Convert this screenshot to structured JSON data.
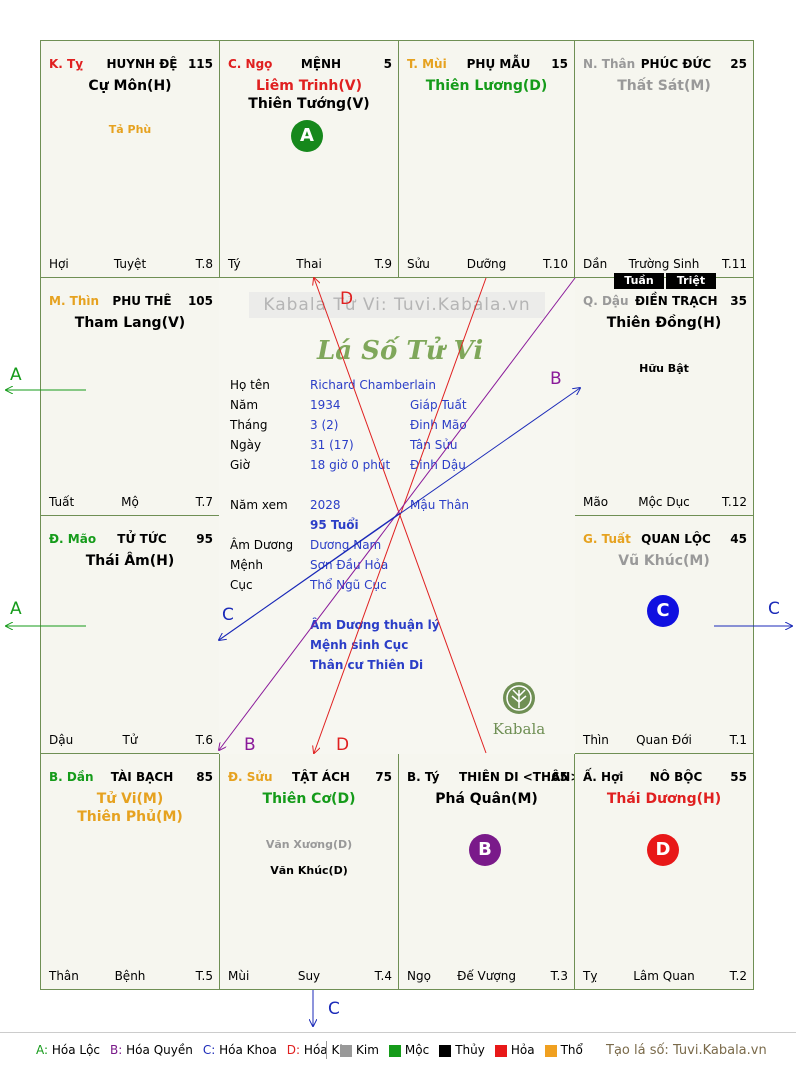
{
  "cells": [
    {
      "id": "ty",
      "branch": "K. Tỵ",
      "branch_color": "#e02020",
      "palace": "HUYNH ĐỆ",
      "num": "115",
      "stars": [
        {
          "text": "Cự Môn(H)",
          "color": "#000000"
        }
      ],
      "minor": [
        {
          "text": "Tả Phù",
          "color": "#e6a220"
        }
      ],
      "foot_l": "Hợi",
      "foot_c": "Tuyệt",
      "foot_r": "T.8"
    },
    {
      "id": "ngo",
      "branch": "C. Ngọ",
      "branch_color": "#e02020",
      "palace": "MỆNH",
      "num": "5",
      "stars": [
        {
          "text": "Liêm Trinh(V)",
          "color": "#e02020"
        },
        {
          "text": "Thiên Tướng(V)",
          "color": "#000000"
        }
      ],
      "minor": [],
      "foot_l": "Tý",
      "foot_c": "Thai",
      "foot_r": "T.9"
    },
    {
      "id": "mui",
      "branch": "T. Mùi",
      "branch_color": "#e6a220",
      "palace": "PHỤ MẪU",
      "num": "15",
      "stars": [
        {
          "text": "Thiên Lương(D)",
          "color": "#159b1a"
        }
      ],
      "minor": [],
      "foot_l": "Sửu",
      "foot_c": "Dưỡng",
      "foot_r": "T.10"
    },
    {
      "id": "than",
      "branch": "N. Thân",
      "branch_color": "#999999",
      "palace": "PHÚC ĐỨC",
      "num": "25",
      "stars": [
        {
          "text": "Thất Sát(M)",
          "color": "#999999"
        }
      ],
      "minor": [],
      "foot_l": "Dần",
      "foot_c": "Trường Sinh",
      "foot_r": "T.11"
    },
    {
      "id": "thin",
      "branch": "M. Thìn",
      "branch_color": "#e6a220",
      "palace": "PHU THÊ",
      "num": "105",
      "stars": [
        {
          "text": "Tham Lang(V)",
          "color": "#000000"
        }
      ],
      "minor": [],
      "foot_l": "Tuất",
      "foot_c": "Mộ",
      "foot_r": "T.7"
    },
    {
      "id": "dau",
      "branch": "Q. Dậu",
      "branch_color": "#999999",
      "palace": "ĐIỀN TRẠCH",
      "num": "35",
      "stars": [
        {
          "text": "Thiên Đồng(H)",
          "color": "#000000"
        }
      ],
      "minor": [
        {
          "text": "Hữu Bật",
          "color": "#000000"
        }
      ],
      "foot_l": "Mão",
      "foot_c": "Mộc Dục",
      "foot_r": "T.12"
    },
    {
      "id": "mao",
      "branch": "Đ. Mão",
      "branch_color": "#159b1a",
      "palace": "TỬ TỨC",
      "num": "95",
      "stars": [
        {
          "text": "Thái Âm(H)",
          "color": "#000000"
        }
      ],
      "minor": [],
      "foot_l": "Dậu",
      "foot_c": "Tử",
      "foot_r": "T.6"
    },
    {
      "id": "tuat",
      "branch": "G. Tuất",
      "branch_color": "#e6a220",
      "palace": "QUAN LỘC",
      "num": "45",
      "stars": [
        {
          "text": "Vũ Khúc(M)",
          "color": "#999999"
        }
      ],
      "minor": [],
      "foot_l": "Thìn",
      "foot_c": "Quan Đới",
      "foot_r": "T.1"
    },
    {
      "id": "dan",
      "branch": "B. Dần",
      "branch_color": "#159b1a",
      "palace": "TÀI BẠCH",
      "num": "85",
      "stars": [
        {
          "text": "Tử Vi(M)",
          "color": "#e6a220"
        },
        {
          "text": "Thiên Phủ(M)",
          "color": "#e6a220"
        }
      ],
      "minor": [],
      "foot_l": "Thân",
      "foot_c": "Bệnh",
      "foot_r": "T.5"
    },
    {
      "id": "suu",
      "branch": "Đ. Sửu",
      "branch_color": "#e6a220",
      "palace": "TẬT ÁCH",
      "num": "75",
      "stars": [
        {
          "text": "Thiên Cơ(D)",
          "color": "#159b1a"
        }
      ],
      "minor": [
        {
          "text": "Văn Xương(D)",
          "color": "#999999"
        },
        {
          "text": "Văn Khúc(D)",
          "color": "#000000"
        }
      ],
      "foot_l": "Mùi",
      "foot_c": "Suy",
      "foot_r": "T.4"
    },
    {
      "id": "tyy",
      "branch": "B. Tý",
      "branch_color": "#000000",
      "palace": "THIÊN DI <THÂN>",
      "num": "65",
      "stars": [
        {
          "text": "Phá Quân(M)",
          "color": "#000000"
        }
      ],
      "minor": [],
      "foot_l": "Ngọ",
      "foot_c": "Đế Vượng",
      "foot_r": "T.3"
    },
    {
      "id": "hoi",
      "branch": "Ấ. Hợi",
      "branch_color": "#000000",
      "palace": "NÔ BỘC",
      "num": "55",
      "stars": [
        {
          "text": "Thái Dương(H)",
          "color": "#e02020"
        }
      ],
      "minor": [],
      "foot_l": "Tỵ",
      "foot_c": "Lâm Quan",
      "foot_r": "T.2"
    }
  ],
  "tuan_label": "Tuần",
  "triet_label": "Triệt",
  "center": {
    "watermark": "Kabala Tử Vi: Tuvi.Kabala.vn",
    "title": "Lá Số Tử Vi",
    "rows": [
      {
        "k": "Họ tên",
        "v1": "Richard Chamberlain",
        "v2": ""
      },
      {
        "k": "Năm",
        "v1": "1934",
        "v2": "Giáp Tuất"
      },
      {
        "k": "Tháng",
        "v1": "3  (2)",
        "v2": "Đinh Mão"
      },
      {
        "k": "Ngày",
        "v1": "31  (17)",
        "v2": "Tân Sửu"
      },
      {
        "k": "Giờ",
        "v1": "18 giờ 0 phút",
        "v2": "Đinh Dậu"
      },
      {
        "k": "Năm xem",
        "v1": "2028",
        "v2": "Mậu Thân"
      },
      {
        "k": "",
        "v1": "95 Tuổi",
        "v2": ""
      },
      {
        "k": "Âm Dương",
        "v1": "Dương Nam",
        "v2": ""
      },
      {
        "k": "Mệnh",
        "v1": "Sơn Đầu Hỏa",
        "v2": ""
      },
      {
        "k": "Cục",
        "v1": "Thổ Ngũ Cục",
        "v2": ""
      },
      {
        "k": "",
        "v1": "Âm Dương thuận lý",
        "v2": ""
      },
      {
        "k": "",
        "v1": "Mệnh sinh Cục",
        "v2": ""
      },
      {
        "k": "",
        "v1": "Thân cư Thiên Di",
        "v2": ""
      }
    ],
    "logo_text": "Kabala"
  },
  "badges": [
    {
      "letter": "A",
      "color": "#16881c"
    },
    {
      "letter": "C",
      "color": "#1010e0"
    },
    {
      "letter": "B",
      "color": "#7a1a8a"
    },
    {
      "letter": "D",
      "color": "#e81818"
    }
  ],
  "arrow_labels": {
    "a_top": "A",
    "a_bottom": "A",
    "c_right": "C",
    "c_bottom": "C",
    "b_upper": "B",
    "b_lower": "B",
    "c_inner": "C",
    "d_upper": "D",
    "d_lower": "D"
  },
  "legend": {
    "items": [
      {
        "key": "A:",
        "text": "Hóa Lộc",
        "color": "#159b1a"
      },
      {
        "key": "B:",
        "text": "Hóa Quyền",
        "color": "#7a1a8a"
      },
      {
        "key": "C:",
        "text": "Hóa Khoa",
        "color": "#1b2ab8"
      },
      {
        "key": "D:",
        "text": "Hóa Kị",
        "color": "#e02020"
      }
    ],
    "elements": [
      {
        "text": "Kim",
        "color": "#999999"
      },
      {
        "text": "Mộc",
        "color": "#159b1a"
      },
      {
        "text": "Thủy",
        "color": "#000000"
      },
      {
        "text": "Hỏa",
        "color": "#e81818"
      },
      {
        "text": "Thổ",
        "color": "#f0a020"
      }
    ],
    "site": "Tạo lá số: Tuvi.Kabala.vn"
  }
}
